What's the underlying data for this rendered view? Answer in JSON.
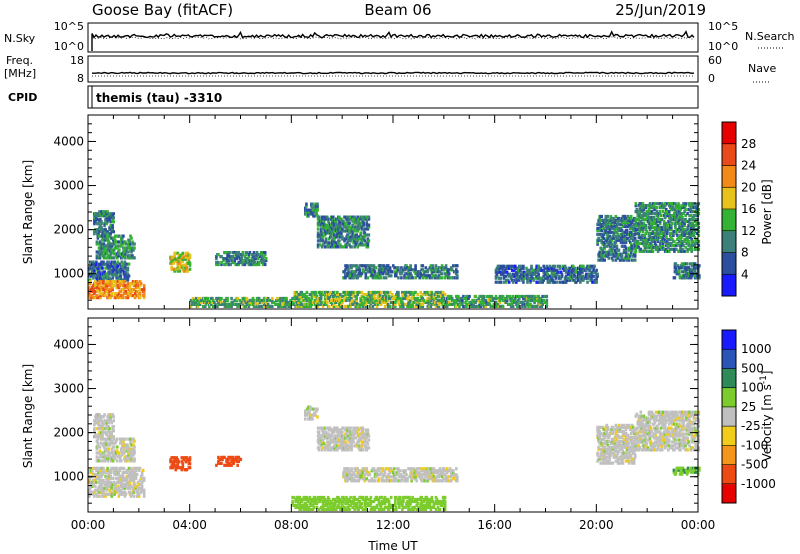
{
  "header": {
    "station": "Goose Bay (fitACF)",
    "beam": "Beam 06",
    "date": "25/Jun/2019"
  },
  "panels": {
    "noise": {
      "left_label": "N.Sky",
      "right_label": "N.Search",
      "ticks_left": [
        "10^5",
        "10^0"
      ],
      "ticks_right": [
        "10^5",
        "10^0"
      ]
    },
    "freq": {
      "left_label_1": "Freq.",
      "left_label_2": "[MHz]",
      "right_label": "Nave",
      "ticks_left": [
        "18",
        "8"
      ],
      "ticks_right": [
        "60",
        "0"
      ]
    },
    "cpid": {
      "label": "CPID",
      "value": "themis (tau) -3310"
    }
  },
  "colors": {
    "power": [
      "#1a1aff",
      "#2b4f9e",
      "#3d7f7a",
      "#33b233",
      "#e6c21a",
      "#f28a1a",
      "#e84a1a",
      "#e60000"
    ],
    "velocity": [
      "#e60000",
      "#ee4a14",
      "#f5961a",
      "#f2cc1a",
      "#c0c0c0",
      "#7ccc2e",
      "#2e8b57",
      "#2a54b8",
      "#1a1aff"
    ],
    "scatter_gray": "#c0c0c0"
  },
  "chart_data": [
    {
      "type": "heatmap",
      "title": "Power",
      "xlabel": "",
      "ylabel": "Slant Range [km]",
      "ylim": [
        200,
        4600
      ],
      "xlim": [
        0,
        24
      ],
      "y_ticks": [
        "1000",
        "2000",
        "3000",
        "4000"
      ],
      "colorbar": {
        "label": "Power [dB]",
        "ticks": [
          "4",
          "8",
          "12",
          "16",
          "20",
          "24",
          "28"
        ],
        "range": [
          0,
          32
        ]
      },
      "regions": [
        {
          "t0": 0.2,
          "t1": 1.0,
          "r0": 1900,
          "r1": 2400,
          "v": 9
        },
        {
          "t0": 0.3,
          "t1": 1.8,
          "r0": 1350,
          "r1": 1850,
          "v": 11
        },
        {
          "t0": 0.0,
          "t1": 1.6,
          "r0": 850,
          "r1": 1300,
          "v": 8
        },
        {
          "t0": 0.0,
          "t1": 2.2,
          "r0": 450,
          "r1": 850,
          "v": 22
        },
        {
          "t0": 3.2,
          "t1": 4.0,
          "r0": 1050,
          "r1": 1500,
          "v": 17
        },
        {
          "t0": 4.0,
          "t1": 8.0,
          "r0": 250,
          "r1": 450,
          "v": 13
        },
        {
          "t0": 5.0,
          "t1": 7.0,
          "r0": 1200,
          "r1": 1500,
          "v": 10
        },
        {
          "t0": 8.5,
          "t1": 9.0,
          "r0": 2300,
          "r1": 2600,
          "v": 9
        },
        {
          "t0": 9.0,
          "t1": 11.0,
          "r0": 1600,
          "r1": 2300,
          "v": 10
        },
        {
          "t0": 10.0,
          "t1": 14.5,
          "r0": 900,
          "r1": 1200,
          "v": 9
        },
        {
          "t0": 8.0,
          "t1": 14.0,
          "r0": 250,
          "r1": 600,
          "v": 14
        },
        {
          "t0": 14.0,
          "t1": 18.0,
          "r0": 250,
          "r1": 500,
          "v": 12
        },
        {
          "t0": 16.0,
          "t1": 20.0,
          "r0": 800,
          "r1": 1200,
          "v": 8
        },
        {
          "t0": 20.0,
          "t1": 21.5,
          "r0": 1300,
          "r1": 2300,
          "v": 9
        },
        {
          "t0": 21.5,
          "t1": 24.0,
          "r0": 1500,
          "r1": 2600,
          "v": 11
        },
        {
          "t0": 23.0,
          "t1": 24.0,
          "r0": 900,
          "r1": 1250,
          "v": 9
        }
      ]
    },
    {
      "type": "heatmap",
      "title": "Velocity",
      "xlabel": "Time UT",
      "ylabel": "Slant Range [km]",
      "ylim": [
        200,
        4600
      ],
      "xlim": [
        0,
        24
      ],
      "x_ticks": [
        "00:00",
        "04:00",
        "08:00",
        "12:00",
        "16:00",
        "20:00",
        "00:00"
      ],
      "y_ticks": [
        "1000",
        "2000",
        "3000",
        "4000"
      ],
      "colorbar": {
        "label": "Velocity [m s^-1]",
        "ticks": [
          "1000",
          "500",
          "100",
          "25",
          "-25",
          "-100",
          "-500",
          "-1000"
        ]
      },
      "regions": [
        {
          "t0": 0.2,
          "t1": 1.0,
          "r0": 1900,
          "r1": 2400,
          "v": 0
        },
        {
          "t0": 0.3,
          "t1": 1.8,
          "r0": 1350,
          "r1": 1850,
          "v": 0
        },
        {
          "t0": 0.0,
          "t1": 2.2,
          "r0": 550,
          "r1": 1200,
          "v": 0
        },
        {
          "t0": 3.2,
          "t1": 4.0,
          "r0": 1150,
          "r1": 1450,
          "v": -200
        },
        {
          "t0": 5.0,
          "t1": 6.0,
          "r0": 1250,
          "r1": 1450,
          "v": -150
        },
        {
          "t0": 8.5,
          "t1": 9.0,
          "r0": 2300,
          "r1": 2600,
          "v": 0
        },
        {
          "t0": 9.0,
          "t1": 11.0,
          "r0": 1600,
          "r1": 2100,
          "v": 0
        },
        {
          "t0": 10.0,
          "t1": 14.5,
          "r0": 900,
          "r1": 1200,
          "v": 0
        },
        {
          "t0": 8.0,
          "t1": 14.0,
          "r0": 250,
          "r1": 550,
          "v": 60
        },
        {
          "t0": 20.0,
          "t1": 21.5,
          "r0": 1300,
          "r1": 2200,
          "v": 0
        },
        {
          "t0": 21.5,
          "t1": 24.0,
          "r0": 1600,
          "r1": 2500,
          "v": 0
        },
        {
          "t0": 23.0,
          "t1": 24.0,
          "r0": 1050,
          "r1": 1200,
          "v": 80
        }
      ]
    }
  ]
}
